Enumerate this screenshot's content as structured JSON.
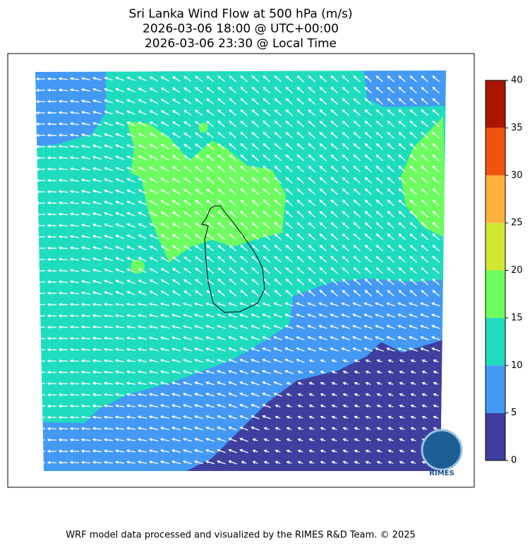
{
  "title": [
    "Sri Lanka Wind Flow at 500 hPa (m/s)",
    "2026-03-06 18:00 @ UTC+00:00",
    "2026-03-06 23:30 @ Local Time"
  ],
  "colorbar": {
    "levels": [
      0,
      5,
      10,
      15,
      20,
      25,
      30,
      35,
      40
    ],
    "colors": [
      "#3f3f9f",
      "#4499f5",
      "#1fdcbf",
      "#6cfc5f",
      "#d0e832",
      "#fdb03a",
      "#f0530e",
      "#a81602"
    ],
    "ticks": [
      0,
      5,
      10,
      15,
      20,
      25,
      30,
      35,
      40
    ]
  },
  "logo_text": "RIMES",
  "footer": "WRF model data processed and visualized by the RIMES R&D Team. © 2025"
}
